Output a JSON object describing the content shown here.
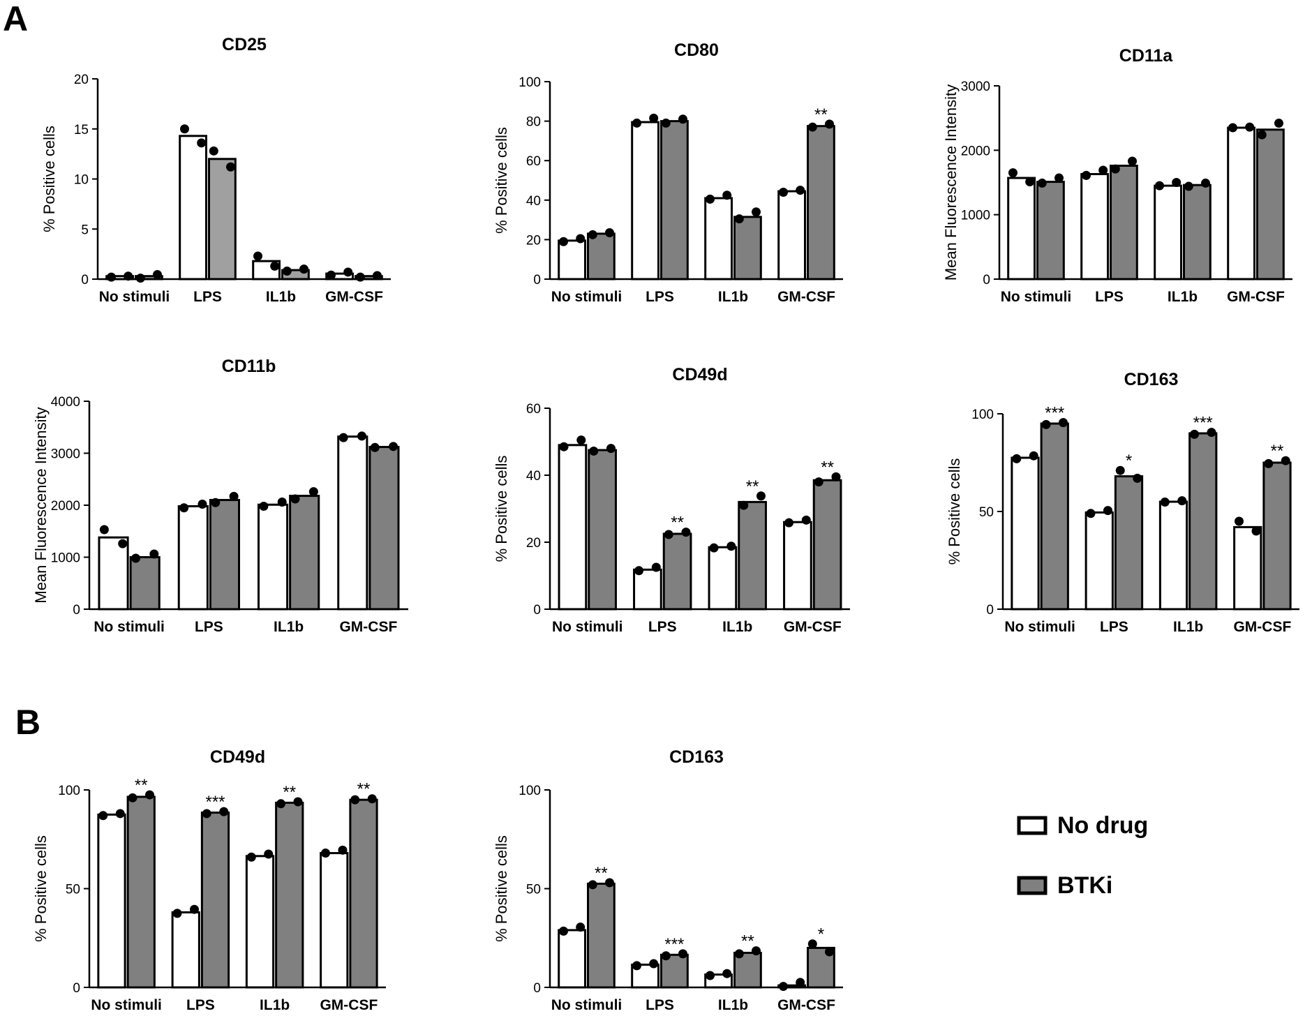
{
  "colors": {
    "no_drug": "#ffffff",
    "btki": "#808080",
    "btki_cd25": "#a0a0a0",
    "axis": "#000000"
  },
  "panel_labels": [
    "A",
    "B"
  ],
  "legend": {
    "items": [
      {
        "label": "No drug",
        "color": "#ffffff"
      },
      {
        "label": "BTKi",
        "color": "#808080"
      }
    ]
  },
  "chart_data": [
    {
      "id": "a-cd25",
      "panel": "A",
      "type": "bar",
      "title": "CD25",
      "ylabel": "% Positive cells",
      "categories": [
        "No stimuli",
        "LPS",
        "IL1b",
        "GM-CSF"
      ],
      "ylim": [
        0,
        20
      ],
      "yticks": [
        0,
        5,
        10,
        15,
        20
      ],
      "series": [
        {
          "name": "No drug",
          "values": [
            0.3,
            14.3,
            1.8,
            0.55
          ],
          "points": [
            [
              0.2,
              0.3
            ],
            [
              15.0,
              13.6
            ],
            [
              2.3,
              1.3
            ],
            [
              0.4,
              0.7
            ]
          ]
        },
        {
          "name": "BTKi",
          "values": [
            0.3,
            12.0,
            0.9,
            0.3
          ],
          "points": [
            [
              0.1,
              0.45
            ],
            [
              12.8,
              11.2
            ],
            [
              0.8,
              1.0
            ],
            [
              0.2,
              0.35
            ]
          ]
        }
      ],
      "significance": [
        "",
        "",
        "",
        ""
      ]
    },
    {
      "id": "a-cd80",
      "panel": "A",
      "type": "bar",
      "title": "CD80",
      "ylabel": "% Positive cells",
      "categories": [
        "No stimuli",
        "LPS",
        "IL1b",
        "GM-CSF"
      ],
      "ylim": [
        0,
        100
      ],
      "yticks": [
        0,
        20,
        40,
        60,
        80,
        100
      ],
      "series": [
        {
          "name": "No drug",
          "values": [
            19.5,
            79.5,
            41.0,
            44.5
          ],
          "points": [
            [
              19.0,
              20.5
            ],
            [
              79.0,
              81.5
            ],
            [
              40.5,
              42.5
            ],
            [
              44.0,
              45.0
            ]
          ]
        },
        {
          "name": "BTKi",
          "values": [
            23.0,
            80.0,
            31.5,
            77.5
          ],
          "points": [
            [
              22.5,
              23.5
            ],
            [
              79.0,
              81.0
            ],
            [
              30.5,
              34.0
            ],
            [
              77.0,
              78.5
            ]
          ]
        }
      ],
      "significance": [
        "",
        "",
        "",
        "**"
      ]
    },
    {
      "id": "a-cd11a",
      "panel": "A",
      "type": "bar",
      "title": "CD11a",
      "ylabel": "Mean  Fluorescence Intensity",
      "categories": [
        "No stimuli",
        "LPS",
        "IL1b",
        "GM-CSF"
      ],
      "ylim": [
        0,
        3000
      ],
      "yticks": [
        0,
        1000,
        2000,
        3000
      ],
      "series": [
        {
          "name": "No drug",
          "values": [
            1570,
            1630,
            1450,
            2350
          ],
          "points": [
            [
              1650,
              1510
            ],
            [
              1610,
              1690
            ],
            [
              1450,
              1500
            ],
            [
              2350,
              2360
            ]
          ]
        },
        {
          "name": "BTKi",
          "values": [
            1510,
            1760,
            1460,
            2320
          ],
          "points": [
            [
              1490,
              1570
            ],
            [
              1710,
              1830
            ],
            [
              1440,
              1490
            ],
            [
              2240,
              2420
            ]
          ]
        }
      ],
      "significance": [
        "",
        "",
        "",
        ""
      ]
    },
    {
      "id": "a-cd11b",
      "panel": "A",
      "type": "bar",
      "title": "CD11b",
      "ylabel": "Mean  Fluorescence Intensity",
      "categories": [
        "No stimuli",
        "LPS",
        "IL1b",
        "GM-CSF"
      ],
      "ylim": [
        0,
        4000
      ],
      "yticks": [
        0,
        1000,
        2000,
        3000,
        4000
      ],
      "series": [
        {
          "name": "No drug",
          "values": [
            1380,
            1980,
            2010,
            3320
          ],
          "points": [
            [
              1530,
              1260
            ],
            [
              1950,
              2020
            ],
            [
              1980,
              2060
            ],
            [
              3300,
              3330
            ]
          ]
        },
        {
          "name": "BTKi",
          "values": [
            1000,
            2100,
            2180,
            3120
          ],
          "points": [
            [
              980,
              1060
            ],
            [
              2050,
              2170
            ],
            [
              2120,
              2260
            ],
            [
              3110,
              3130
            ]
          ]
        }
      ],
      "significance": [
        "",
        "",
        "",
        ""
      ]
    },
    {
      "id": "a-cd49d",
      "panel": "A",
      "type": "bar",
      "title": "CD49d",
      "ylabel": "% Positive cells",
      "categories": [
        "No stimuli",
        "LPS",
        "IL1b",
        "GM-CSF"
      ],
      "ylim": [
        0,
        60
      ],
      "yticks": [
        0,
        20,
        40,
        60
      ],
      "series": [
        {
          "name": "No drug",
          "values": [
            49.0,
            11.8,
            18.5,
            26.0
          ],
          "points": [
            [
              48.5,
              50.5
            ],
            [
              11.5,
              12.5
            ],
            [
              18.3,
              18.8
            ],
            [
              25.8,
              26.6
            ]
          ]
        },
        {
          "name": "BTKi",
          "values": [
            47.5,
            22.5,
            32.0,
            38.5
          ],
          "points": [
            [
              47.2,
              48.0
            ],
            [
              22.3,
              23.0
            ],
            [
              31.0,
              33.8
            ],
            [
              38.0,
              39.5
            ]
          ]
        }
      ],
      "significance": [
        "",
        "**",
        "**",
        "**"
      ]
    },
    {
      "id": "a-cd163",
      "panel": "A",
      "type": "bar",
      "title": "CD163",
      "ylabel": "% Positive cells",
      "categories": [
        "No stimuli",
        "LPS",
        "IL1b",
        "GM-CSF"
      ],
      "ylim": [
        0,
        100
      ],
      "yticks": [
        0,
        50,
        100
      ],
      "series": [
        {
          "name": "No drug",
          "values": [
            77.5,
            49.5,
            55.0,
            42.0
          ],
          "points": [
            [
              77.0,
              78.5
            ],
            [
              49.0,
              50.5
            ],
            [
              54.8,
              55.5
            ],
            [
              45.0,
              40.0
            ]
          ]
        },
        {
          "name": "BTKi",
          "values": [
            95.0,
            68.0,
            90.0,
            75.0
          ],
          "points": [
            [
              94.5,
              95.5
            ],
            [
              71.0,
              67.0
            ],
            [
              89.5,
              90.5
            ],
            [
              74.5,
              76.0
            ]
          ]
        }
      ],
      "significance": [
        "***",
        "*",
        "***",
        "**"
      ]
    },
    {
      "id": "b-cd49d",
      "panel": "B",
      "type": "bar",
      "title": "CD49d",
      "ylabel": "% Positive cells",
      "categories": [
        "No stimuli",
        "LPS",
        "IL1b",
        "GM-CSF"
      ],
      "ylim": [
        0,
        100
      ],
      "yticks": [
        0,
        50,
        100
      ],
      "series": [
        {
          "name": "No drug",
          "values": [
            87.5,
            38.0,
            66.5,
            68.0
          ],
          "points": [
            [
              87.0,
              88.0
            ],
            [
              37.5,
              39.5
            ],
            [
              66.0,
              67.5
            ],
            [
              68.0,
              69.5
            ]
          ]
        },
        {
          "name": "BTKi",
          "values": [
            96.5,
            88.5,
            93.5,
            95.0
          ],
          "points": [
            [
              96.0,
              97.5
            ],
            [
              88.0,
              89.0
            ],
            [
              93.0,
              94.0
            ],
            [
              95.0,
              95.5
            ]
          ]
        }
      ],
      "significance": [
        "**",
        "***",
        "**",
        "**"
      ]
    },
    {
      "id": "b-cd163",
      "panel": "B",
      "type": "bar",
      "title": "CD163",
      "ylabel": "% Positive cells",
      "categories": [
        "No stimuli",
        "LPS",
        "IL1b",
        "GM-CSF"
      ],
      "ylim": [
        0,
        100
      ],
      "yticks": [
        0,
        50,
        100
      ],
      "series": [
        {
          "name": "No drug",
          "values": [
            29.0,
            11.5,
            6.5,
            1.0
          ],
          "points": [
            [
              28.5,
              30.5
            ],
            [
              11.0,
              12.0
            ],
            [
              6.0,
              7.0
            ],
            [
              0.5,
              2.5
            ]
          ]
        },
        {
          "name": "BTKi",
          "values": [
            52.5,
            16.5,
            17.5,
            20.0
          ],
          "points": [
            [
              52.0,
              53.0
            ],
            [
              16.0,
              17.0
            ],
            [
              17.0,
              18.5
            ],
            [
              22.0,
              18.0
            ]
          ]
        }
      ],
      "significance": [
        "**",
        "***",
        "**",
        "*"
      ]
    }
  ]
}
